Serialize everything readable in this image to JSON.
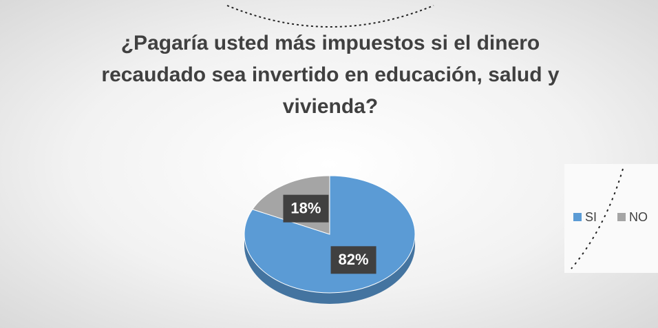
{
  "chart_data": {
    "type": "pie",
    "title": "¿Pagaría usted más impuestos si el dinero recaudado sea invertido en educación, salud y vivienda?",
    "categories": [
      "SI",
      "NO"
    ],
    "values": [
      82,
      18
    ],
    "value_labels": [
      "82%",
      "18%"
    ],
    "colors": [
      "#5b9bd5",
      "#a5a5a5"
    ],
    "legend": "right"
  }
}
